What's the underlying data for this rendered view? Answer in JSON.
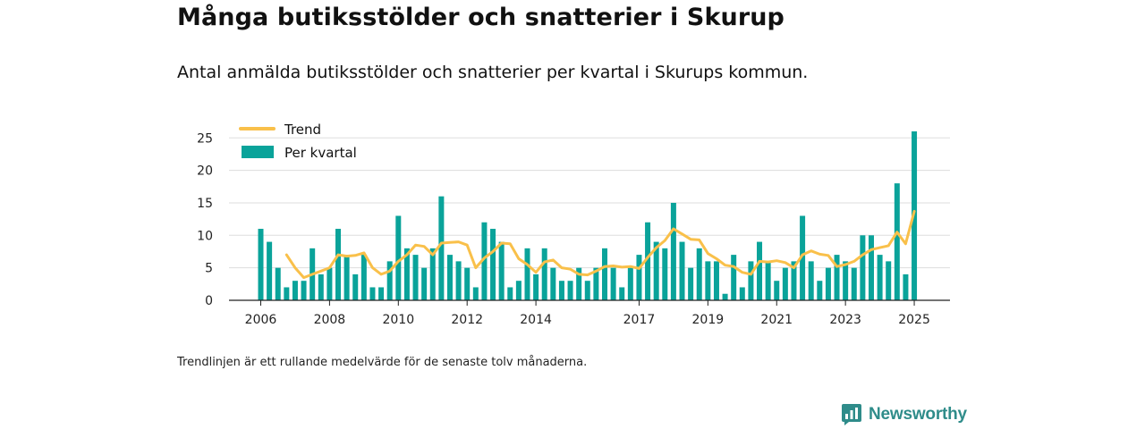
{
  "title": "Många butiksstölder och snatterier i Skurup",
  "subtitle": "Antal anmälda butiksstölder och snatterier per kvartal i Skurups kommun.",
  "footnote": "Trendlinjen är ett rullande medelvärde för de senaste tolv månaderna.",
  "brand": "Newsworthy",
  "colors": {
    "bar": "#0aa39a",
    "trend": "#f9c04a",
    "grid": "#dddddd",
    "axis": "#222222",
    "brand": "#2f8c8a"
  },
  "chart_data": {
    "type": "bar",
    "ylim": [
      0,
      27
    ],
    "yticks": [
      0,
      5,
      10,
      15,
      20,
      25
    ],
    "xticks": [
      "2006",
      "2008",
      "2010",
      "2012",
      "2014",
      "2017",
      "2019",
      "2021",
      "2023",
      "2025"
    ],
    "grid": true,
    "legend_position": "top-left",
    "series": [
      {
        "name": "Trend",
        "kind": "line",
        "x": [
          2006.75,
          2007.0,
          2007.25,
          2007.5,
          2007.75,
          2008.0,
          2008.25,
          2008.5,
          2008.75,
          2009.0,
          2009.25,
          2009.5,
          2009.75,
          2010.0,
          2010.25,
          2010.5,
          2010.75,
          2011.0,
          2011.25,
          2011.5,
          2011.75,
          2012.0,
          2012.25,
          2012.5,
          2012.75,
          2013.0,
          2013.25,
          2013.5,
          2013.75,
          2014.0,
          2014.25,
          2014.5,
          2014.75,
          2015.0,
          2015.25,
          2015.5,
          2015.75,
          2016.0,
          2016.25,
          2016.5,
          2016.75,
          2017.0,
          2017.25,
          2017.5,
          2017.75,
          2018.0,
          2018.25,
          2018.5,
          2018.75,
          2019.0,
          2019.25,
          2019.5,
          2019.75,
          2020.0,
          2020.25,
          2020.5,
          2020.75,
          2021.0,
          2021.25,
          2021.5,
          2021.75,
          2022.0,
          2022.25,
          2022.5,
          2022.75,
          2023.0,
          2023.25,
          2023.5,
          2023.75,
          2024.0,
          2024.25,
          2024.5,
          2024.75,
          2025.0
        ],
        "values": [
          7,
          5,
          3.5,
          4,
          4.5,
          5,
          7,
          6.8,
          6.9,
          7.3,
          5,
          4,
          4.5,
          6,
          7,
          8.5,
          8.3,
          7,
          8.8,
          8.9,
          9,
          8.5,
          5,
          6.5,
          7.5,
          8.8,
          8.7,
          6.4,
          5.5,
          4.3,
          5.9,
          6.2,
          5,
          4.8,
          4,
          3.9,
          4.5,
          5.2,
          5.3,
          5.1,
          5.2,
          4.9,
          6.6,
          8.1,
          9.2,
          11,
          10.2,
          9.4,
          9.3,
          7.2,
          6.4,
          5.4,
          5.2,
          4.3,
          4,
          6,
          5.9,
          6.1,
          5.8,
          5,
          7,
          7.6,
          7.1,
          6.9,
          5.2,
          5.5,
          6,
          7,
          7.8,
          8.1,
          8.4,
          10.5,
          8.7,
          13.7
        ]
      },
      {
        "name": "Per kvartal",
        "kind": "bar",
        "x": [
          2006.0,
          2006.25,
          2006.5,
          2006.75,
          2007.0,
          2007.25,
          2007.5,
          2007.75,
          2008.0,
          2008.25,
          2008.5,
          2008.75,
          2009.0,
          2009.25,
          2009.5,
          2009.75,
          2010.0,
          2010.25,
          2010.5,
          2010.75,
          2011.0,
          2011.25,
          2011.5,
          2011.75,
          2012.0,
          2012.25,
          2012.5,
          2012.75,
          2013.0,
          2013.25,
          2013.5,
          2013.75,
          2014.0,
          2014.25,
          2014.5,
          2014.75,
          2015.0,
          2015.25,
          2015.5,
          2015.75,
          2016.0,
          2016.25,
          2016.5,
          2016.75,
          2017.0,
          2017.25,
          2017.5,
          2017.75,
          2018.0,
          2018.25,
          2018.5,
          2018.75,
          2019.0,
          2019.25,
          2019.5,
          2019.75,
          2020.0,
          2020.25,
          2020.5,
          2020.75,
          2021.0,
          2021.25,
          2021.5,
          2021.75,
          2022.0,
          2022.25,
          2022.5,
          2022.75,
          2023.0,
          2023.25,
          2023.5,
          2023.75,
          2024.0,
          2024.25,
          2024.5,
          2024.75,
          2025.0
        ],
        "values": [
          11,
          9,
          5,
          2,
          3,
          3,
          8,
          4,
          5,
          11,
          7,
          4,
          7,
          2,
          2,
          6,
          13,
          8,
          7,
          5,
          8,
          16,
          7,
          6,
          5,
          2,
          12,
          11,
          9,
          2,
          3,
          8,
          4,
          8,
          5,
          3,
          3,
          5,
          3,
          5,
          8,
          5,
          2,
          5,
          7,
          12,
          9,
          8,
          15,
          9,
          5,
          8,
          6,
          6,
          1,
          7,
          2,
          6,
          9,
          6,
          3,
          5,
          6,
          13,
          6,
          3,
          5,
          7,
          6,
          5,
          10,
          10,
          7,
          6,
          18,
          4,
          26
        ]
      }
    ]
  }
}
